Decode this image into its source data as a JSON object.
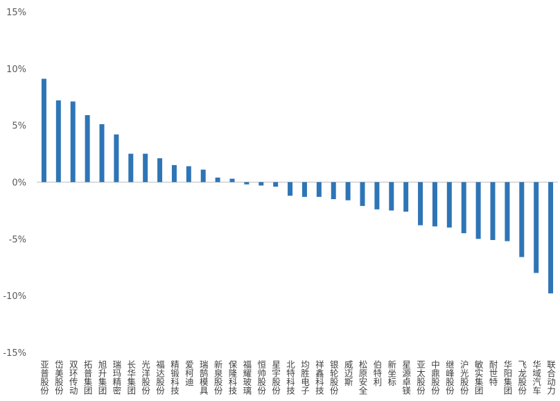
{
  "chart_data": {
    "type": "bar",
    "title": "",
    "xlabel": "",
    "ylabel": "",
    "ylim": [
      -15,
      15
    ],
    "yticks": [
      15,
      10,
      5,
      0,
      -5,
      -10,
      -15
    ],
    "ytick_labels": [
      "15%",
      "10%",
      "5%",
      "0%",
      "-5%",
      "-10%",
      "-15%"
    ],
    "grid": false,
    "legend": "none",
    "bar_color": "#2E75B6",
    "axis_color": "#BFBFBF",
    "categories": [
      "亚普股份",
      "岱美股份",
      "双环传动",
      "拓普集团",
      "旭升集团",
      "瑞玛精密",
      "长华集团",
      "光洋股份",
      "福达股份",
      "精锻科技",
      "爱柯迪",
      "瑞鹄模具",
      "新泉股份",
      "保隆科技",
      "福耀玻璃",
      "恒帅股份",
      "星宇股份",
      "北特科技",
      "均胜电子",
      "祥鑫科技",
      "银轮股份",
      "威迈斯",
      "松原安全",
      "伯特利",
      "新坐标",
      "星源卓镁",
      "亚太股份",
      "中鼎股份",
      "继峰股份",
      "沪光股份",
      "敏实集团",
      "耐世特",
      "华阳集团",
      "飞龙股份",
      "华域汽车",
      "联合动力"
    ],
    "values": [
      9.1,
      7.2,
      7.1,
      5.9,
      5.1,
      4.2,
      2.5,
      2.5,
      2.1,
      1.5,
      1.4,
      1.1,
      0.4,
      0.3,
      -0.2,
      -0.3,
      -0.4,
      -1.2,
      -1.3,
      -1.3,
      -1.5,
      -1.6,
      -2.1,
      -2.4,
      -2.5,
      -2.6,
      -3.8,
      -3.9,
      -4.0,
      -4.5,
      -5.0,
      -5.1,
      -5.2,
      -6.6,
      -8.0,
      -9.8
    ]
  }
}
